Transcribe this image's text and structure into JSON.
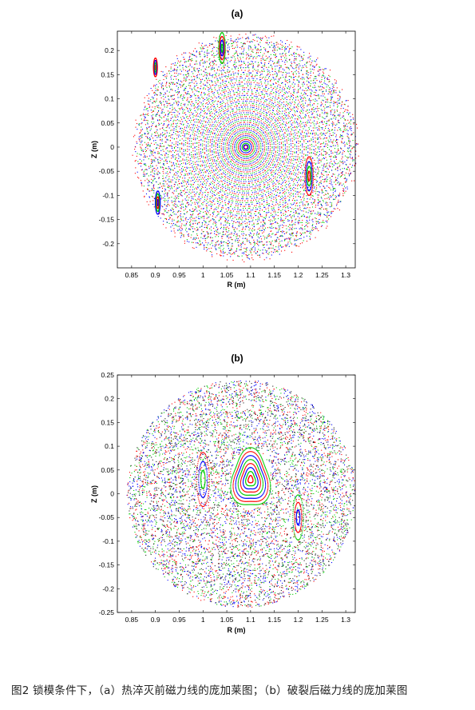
{
  "caption": "图2 锁模条件下，（a）热淬灭前磁力线的庞加莱图；（b）破裂后磁力线的庞加莱图",
  "colors": {
    "series": [
      "#0000ff",
      "#ff0000",
      "#00cc00",
      "#202020"
    ]
  },
  "chart_data": [
    {
      "type": "scatter",
      "title": "(a)",
      "xlabel": "R (m)",
      "ylabel": "Z (m)",
      "xlim": [
        0.82,
        1.32
      ],
      "ylim": [
        -0.25,
        0.24
      ],
      "xticks": [
        "0.85",
        "0.9",
        "0.95",
        "1",
        "1.05",
        "1.1",
        "1.15",
        "1.2",
        "1.25",
        "1.3"
      ],
      "yticks": [
        "-0.2",
        "-0.15",
        "-0.1",
        "-0.05",
        "0",
        "0.05",
        "0.1",
        "0.15",
        "0.2"
      ],
      "grid": false,
      "pattern": "nested concentric flux surfaces centred at R=1.09, Z=0 with magnetic islands near edge",
      "magnetic_axis": {
        "r": 1.09,
        "z": 0.0
      },
      "boundary_radius": 0.23,
      "islands": [
        {
          "r": 1.223,
          "z": -0.06,
          "w": 0.025
        },
        {
          "r": 1.04,
          "z": 0.205,
          "w": 0.02
        },
        {
          "r": 0.905,
          "z": -0.115,
          "w": 0.015
        },
        {
          "r": 0.9,
          "z": 0.165,
          "w": 0.012
        }
      ]
    },
    {
      "type": "scatter",
      "title": "(b)",
      "xlabel": "R (m)",
      "ylabel": "Z (m)",
      "xlim": [
        0.82,
        1.32
      ],
      "ylim": [
        -0.25,
        0.25
      ],
      "xticks": [
        "0.85",
        "0.9",
        "0.95",
        "1",
        "1.05",
        "1.1",
        "1.15",
        "1.2",
        "1.25",
        "1.3"
      ],
      "yticks": [
        "-0.25",
        "-0.2",
        "-0.15",
        "-0.1",
        "-0.05",
        "0",
        "0.05",
        "0.1",
        "0.15",
        "0.2",
        "0.25"
      ],
      "grid": false,
      "pattern": "stochastic field region with a surviving core island and side islands",
      "core": {
        "r": 1.1,
        "z": 0.03,
        "rx": 0.04,
        "ry": 0.06
      },
      "side_islands": [
        {
          "r": 1.0,
          "z": 0.03,
          "w": 0.03
        },
        {
          "r": 1.2,
          "z": -0.05,
          "w": 0.025
        }
      ],
      "boundary_radius": 0.24
    }
  ]
}
